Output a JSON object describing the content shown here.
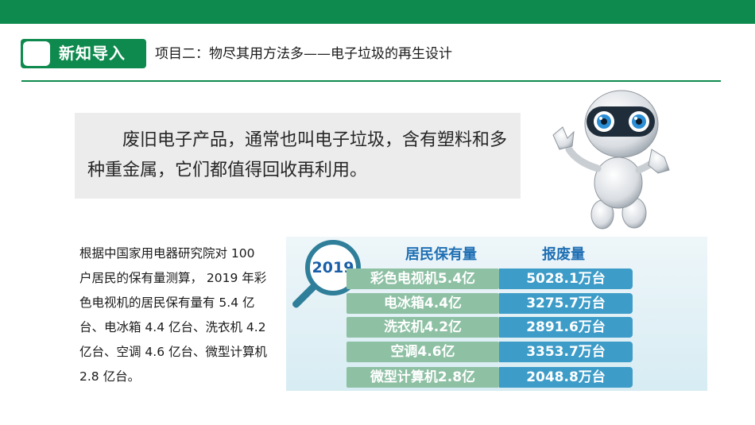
{
  "header": {
    "badge_label": "新知导入",
    "title": "项目二：物尽其用方法多——电子垃圾的再生设计"
  },
  "intro": {
    "text": "废旧电子产品，通常也叫电子垃圾，含有塑料和多种重金属，它们都值得回收再利用。"
  },
  "description": {
    "text": "根据中国家用电器研究院对 100 户居民的保有量测算， 2019 年彩色电视机的居民保有量有 5.4 亿台、电冰箱 4.4 亿台、洗衣机 4.2 亿台、空调 4.6 亿台、微型计算机 2.8 亿台。"
  },
  "table": {
    "year": "2019",
    "headers": {
      "owned": "居民保有量",
      "scrapped": "报废量"
    },
    "rows": [
      {
        "owned": "彩色电视机5.4亿",
        "scrapped": "5028.1万台"
      },
      {
        "owned": "电冰箱4.4亿",
        "scrapped": "3275.7万台"
      },
      {
        "owned": "洗衣机4.2亿",
        "scrapped": "2891.6万台"
      },
      {
        "owned": "空调4.6亿",
        "scrapped": "3353.7万台"
      },
      {
        "owned": "微型计算机2.8亿",
        "scrapped": "2048.8万台"
      }
    ]
  },
  "colors": {
    "brand_green": "#0f8a4e",
    "owned_cell": "#8ec0a4",
    "scrapped_cell": "#3d9cc8",
    "header_blue": "#1f6fb4"
  },
  "icons": {
    "badge": "white-rounded-square",
    "magnifier": "magnifier-icon",
    "mascot": "robot-mascot"
  }
}
